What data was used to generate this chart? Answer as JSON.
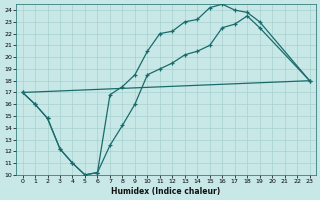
{
  "xlabel": "Humidex (Indice chaleur)",
  "bg_color": "#c8e8e8",
  "line_color": "#1a6b6b",
  "grid_color": "#a8d0d0",
  "xlim": [
    -0.5,
    23.5
  ],
  "ylim": [
    10,
    24.5
  ],
  "xticks": [
    0,
    1,
    2,
    3,
    4,
    5,
    6,
    7,
    8,
    9,
    10,
    11,
    12,
    13,
    14,
    15,
    16,
    17,
    18,
    19,
    20,
    21,
    22,
    23
  ],
  "yticks": [
    10,
    11,
    12,
    13,
    14,
    15,
    16,
    17,
    18,
    19,
    20,
    21,
    22,
    23,
    24
  ],
  "series1": {
    "x": [
      0,
      1,
      2,
      3,
      4,
      5,
      6,
      7,
      8,
      9,
      10,
      11,
      12,
      13,
      14,
      15,
      16,
      17,
      18,
      19,
      23
    ],
    "y": [
      17.0,
      16.0,
      14.8,
      12.2,
      11.0,
      10.0,
      10.2,
      12.5,
      14.2,
      16.0,
      18.5,
      19.0,
      19.5,
      20.2,
      20.5,
      21.0,
      22.5,
      22.8,
      23.5,
      22.5,
      18.0
    ]
  },
  "series2": {
    "x": [
      0,
      1,
      2,
      3,
      4,
      5,
      6,
      7,
      8,
      9,
      10,
      11,
      12,
      13,
      14,
      15,
      16,
      17,
      18,
      19,
      23
    ],
    "y": [
      17.0,
      16.0,
      14.8,
      12.2,
      11.0,
      10.0,
      10.2,
      16.8,
      17.5,
      18.5,
      20.5,
      22.0,
      22.2,
      23.0,
      23.2,
      24.2,
      24.5,
      24.0,
      23.8,
      23.0,
      18.0
    ]
  },
  "series3": {
    "x": [
      0,
      23
    ],
    "y": [
      17.0,
      18.0
    ]
  }
}
